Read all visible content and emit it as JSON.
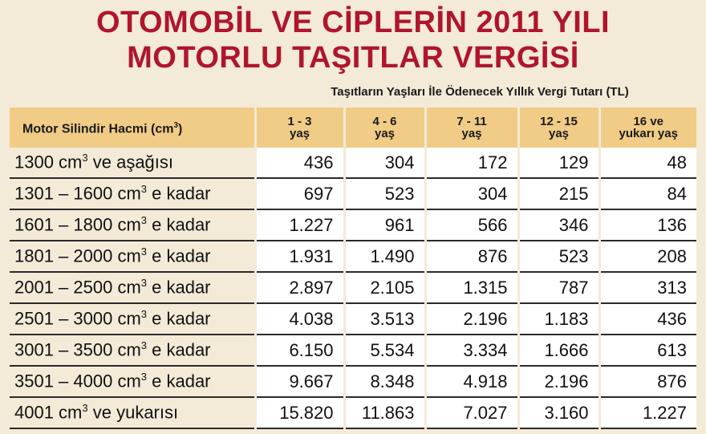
{
  "title": {
    "line1": "OTOMOBİL VE CİPLERİN 2011 YILI",
    "line2": "MOTORLU TAŞITLAR VERGİSİ"
  },
  "subtitle": "Taşıtların Yaşları İle Ödenecek Yıllık Vergi Tutarı (TL)",
  "table": {
    "first_header": "Motor Silindir Hacmi  (cm",
    "first_header_sup": "3",
    "first_header_end": ")",
    "columns": [
      {
        "line1": "1 - 3",
        "line2": "yaş"
      },
      {
        "line1": "4 - 6",
        "line2": "yaş"
      },
      {
        "line1": "7 - 11",
        "line2": "yaş"
      },
      {
        "line1": "12 - 15",
        "line2": "yaş"
      },
      {
        "line1": "16 ve",
        "line2": "yukarı yaş"
      }
    ],
    "rows": [
      {
        "pre": "1300 cm",
        "post": " ve aşağısı",
        "values": [
          "436",
          "304",
          "172",
          "129",
          "48"
        ]
      },
      {
        "pre": "1301 – 1600 cm",
        "post": " e kadar",
        "values": [
          "697",
          "523",
          "304",
          "215",
          "84"
        ]
      },
      {
        "pre": "1601 – 1800 cm",
        "post": " e kadar",
        "values": [
          "1.227",
          "961",
          "566",
          "346",
          "136"
        ]
      },
      {
        "pre": "1801 – 2000 cm",
        "post": " e kadar",
        "values": [
          "1.931",
          "1.490",
          "876",
          "523",
          "208"
        ]
      },
      {
        "pre": "2001 – 2500 cm",
        "post": " e kadar",
        "values": [
          "2.897",
          "2.105",
          "1.315",
          "787",
          "313"
        ]
      },
      {
        "pre": "2501 – 3000 cm",
        "post": " e kadar",
        "values": [
          "4.038",
          "3.513",
          "2.196",
          "1.183",
          "436"
        ]
      },
      {
        "pre": "3001 – 3500 cm",
        "post": " e kadar",
        "values": [
          "6.150",
          "5.534",
          "3.334",
          "1.666",
          "613"
        ]
      },
      {
        "pre": "3501 – 4000 cm",
        "post": " e kadar",
        "values": [
          "9.667",
          "8.348",
          "4.918",
          "2.196",
          "876"
        ]
      },
      {
        "pre": "4001 cm",
        "post": " ve yukarısı",
        "values": [
          "15.820",
          "11.863",
          "7.027",
          "3.160",
          "1.227"
        ]
      }
    ],
    "unit_sup": "3"
  }
}
